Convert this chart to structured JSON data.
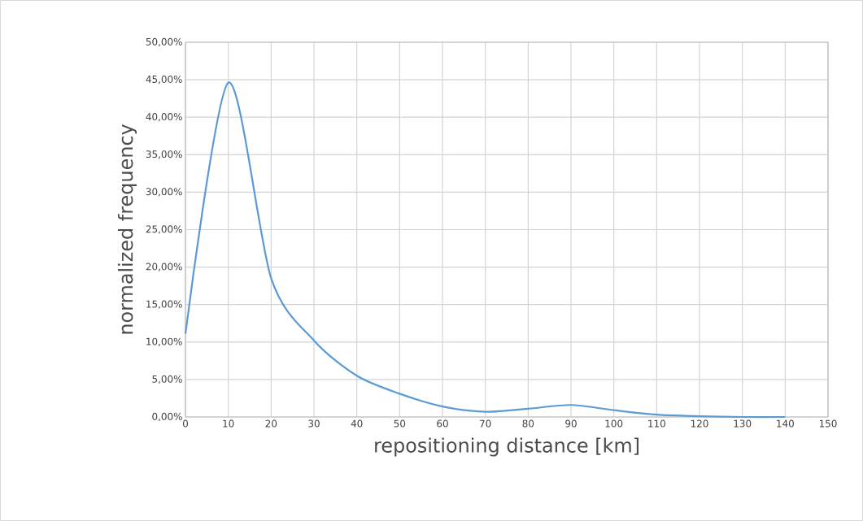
{
  "chart_data": {
    "type": "line",
    "xlabel": "repositioning distance [km]",
    "ylabel": "normalized frequency",
    "x": [
      0,
      10,
      20,
      30,
      40,
      50,
      60,
      70,
      80,
      90,
      100,
      110,
      120,
      130,
      140
    ],
    "series": [
      {
        "color": "#5b9bd5",
        "values": [
          11.1,
          44.6,
          18.5,
          10.2,
          5.5,
          3.1,
          1.4,
          0.7,
          1.1,
          1.6,
          0.9,
          0.3,
          0.1,
          0,
          0
        ]
      }
    ],
    "xlim": [
      0,
      150
    ],
    "xticks": [
      0,
      10,
      20,
      30,
      40,
      50,
      60,
      70,
      80,
      90,
      100,
      110,
      120,
      130,
      140,
      150
    ],
    "ylim": [
      0,
      50
    ],
    "yticks": [
      {
        "value": 0,
        "label": "0,00%"
      },
      {
        "value": 5,
        "label": "5,00%"
      },
      {
        "value": 10,
        "label": "10,00%"
      },
      {
        "value": 15,
        "label": "15,00%"
      },
      {
        "value": 20,
        "label": "20,00%"
      },
      {
        "value": 25,
        "label": "25,00%"
      },
      {
        "value": 30,
        "label": "30,00%"
      },
      {
        "value": 35,
        "label": "35,00%"
      },
      {
        "value": 40,
        "label": "40,00%"
      },
      {
        "value": 45,
        "label": "45,00%"
      },
      {
        "value": 50,
        "label": "50,00%"
      }
    ],
    "grid": true,
    "marker": "none",
    "line_style": "solid"
  }
}
